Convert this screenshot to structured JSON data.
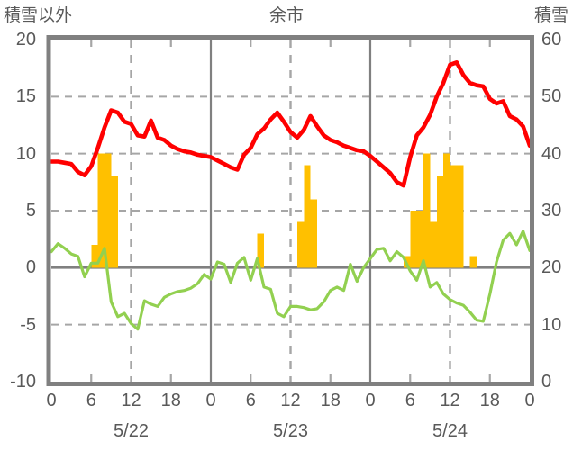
{
  "header": {
    "left_axis_title": "積雪以外",
    "title": "余市",
    "right_axis_title": "積雪"
  },
  "chart_data": {
    "type": "line+bar",
    "title": "余市",
    "x_axis": {
      "unit": "hour",
      "hours_start": 0,
      "hours_end": 72,
      "tick_interval_hours": 6,
      "tick_label_cycle": [
        "0",
        "6",
        "12",
        "18"
      ],
      "last_tick_label": "0",
      "date_labels": [
        {
          "label": "5/22",
          "t": 12
        },
        {
          "label": "5/23",
          "t": 36
        },
        {
          "label": "5/24",
          "t": 60
        }
      ],
      "grid_dashed_hours": [
        12,
        36,
        60
      ],
      "grid_solid_hours": [
        24,
        48
      ],
      "minor_tick_hours": [
        6,
        18,
        30,
        42,
        54,
        66
      ]
    },
    "y_axis_left": {
      "title": "積雪以外",
      "min": -10,
      "max": 20,
      "ticks": [
        20,
        15,
        10,
        5,
        0,
        -5,
        -10
      ],
      "grid_dashed_values": [
        15,
        10,
        5,
        -5
      ],
      "zero_line_value": 0
    },
    "y_axis_right": {
      "title": "積雪",
      "min": 0,
      "max": 60,
      "ticks": [
        60,
        50,
        40,
        30,
        20,
        10,
        0
      ]
    },
    "series": [
      {
        "name": "red_line",
        "type": "line",
        "axis": "left",
        "color": "#ff0000",
        "x_start": 0,
        "x_step": 1,
        "values": [
          9.3,
          9.3,
          9.2,
          9.1,
          8.4,
          8.1,
          8.9,
          10.5,
          12.3,
          13.8,
          13.6,
          12.8,
          12.6,
          11.6,
          11.5,
          12.9,
          11.4,
          11.2,
          10.7,
          10.4,
          10.2,
          10.1,
          9.9,
          9.8,
          9.7,
          9.4,
          9.1,
          8.8,
          8.6,
          9.9,
          10.5,
          11.7,
          12.2,
          13.0,
          13.6,
          12.8,
          11.9,
          11.4,
          12.1,
          13.3,
          12.4,
          11.6,
          11.2,
          11.0,
          10.7,
          10.5,
          10.3,
          10.2,
          9.8,
          9.3,
          8.8,
          8.3,
          7.5,
          7.2,
          9.7,
          11.6,
          12.3,
          13.4,
          15.0,
          16.2,
          17.8,
          18.0,
          16.9,
          16.2,
          16.0,
          15.9,
          14.8,
          14.4,
          14.6,
          13.3,
          13.0,
          12.4,
          10.7
        ]
      },
      {
        "name": "green_line",
        "type": "line",
        "axis": "right",
        "color": "#92d050",
        "x_start": 0,
        "x_step": 1,
        "values": [
          22.8,
          24.2,
          23.4,
          22.4,
          22.0,
          18.4,
          20.8,
          20.8,
          23.4,
          14.0,
          11.4,
          12.0,
          10.2,
          9.2,
          14.2,
          13.6,
          13.2,
          14.8,
          15.4,
          15.8,
          16.0,
          16.4,
          17.2,
          18.8,
          18.0,
          21.0,
          20.6,
          17.4,
          20.8,
          21.8,
          17.8,
          21.6,
          16.6,
          16.2,
          12.0,
          11.4,
          13.2,
          13.2,
          13.0,
          12.6,
          12.8,
          14.0,
          16.0,
          16.6,
          16.0,
          20.6,
          17.6,
          20.0,
          21.6,
          23.2,
          23.4,
          21.2,
          22.8,
          21.8,
          19.4,
          17.8,
          21.2,
          16.6,
          17.4,
          15.4,
          14.4,
          13.8,
          13.4,
          12.2,
          10.8,
          10.6,
          15.4,
          21.0,
          24.8,
          26.0,
          24.0,
          26.4,
          23.0
        ]
      },
      {
        "name": "yellow_bars",
        "type": "bar",
        "axis": "left",
        "color": "#ffc000",
        "bar_width_hours": 1,
        "bars": [
          {
            "t": 6,
            "v": 2
          },
          {
            "t": 7,
            "v": 10
          },
          {
            "t": 8,
            "v": 10
          },
          {
            "t": 9,
            "v": 8
          },
          {
            "t": 31,
            "v": 3
          },
          {
            "t": 37,
            "v": 4
          },
          {
            "t": 38,
            "v": 9
          },
          {
            "t": 39,
            "v": 6
          },
          {
            "t": 53,
            "v": 1
          },
          {
            "t": 54,
            "v": 5
          },
          {
            "t": 55,
            "v": 5
          },
          {
            "t": 56,
            "v": 10
          },
          {
            "t": 57,
            "v": 4
          },
          {
            "t": 58,
            "v": 8
          },
          {
            "t": 59,
            "v": 10
          },
          {
            "t": 60,
            "v": 9
          },
          {
            "t": 61,
            "v": 9
          },
          {
            "t": 63,
            "v": 1
          }
        ]
      }
    ],
    "colors": {
      "frame": "#808080",
      "grid_dashed": "#a6a6a6",
      "zero_line": "#808080",
      "day_boundary_line": "#808080",
      "text": "#595959"
    },
    "legend": "none"
  }
}
